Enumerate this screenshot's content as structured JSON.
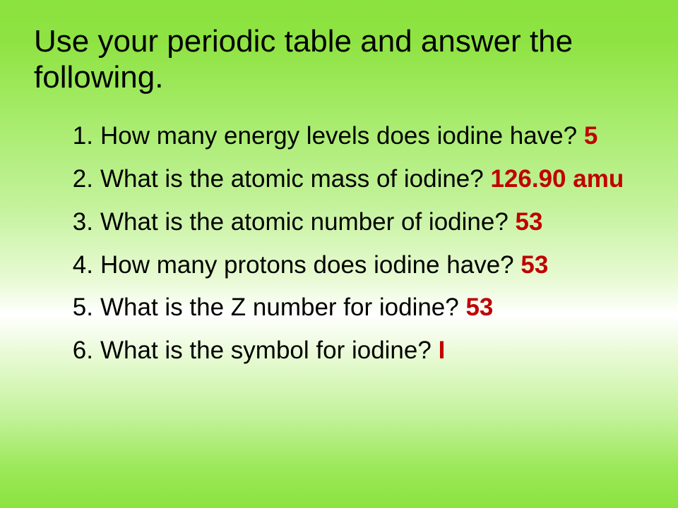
{
  "type": "slide",
  "background": {
    "gradient_stops": [
      "#8be33f",
      "#8ee342",
      "#a1ea62",
      "#c3f29a",
      "#e8fad4",
      "#ffffff",
      "#e8fad4",
      "#c3f29a",
      "#9ce85a",
      "#8be33f"
    ]
  },
  "title": {
    "text": "Use your periodic table and answer the following.",
    "font_size": 44,
    "color": "#000000"
  },
  "list": {
    "font_size": 35,
    "question_color": "#000000",
    "answer_color": "#c00000",
    "answer_weight": "bold",
    "items": [
      {
        "question": "How many energy levels does iodine have? ",
        "answer": "5"
      },
      {
        "question": "What is the atomic mass of iodine? ",
        "answer": "126.90 amu"
      },
      {
        "question": "What is the atomic number of iodine? ",
        "answer": "53"
      },
      {
        "question": "How many protons does iodine have? ",
        "answer": "53"
      },
      {
        "question": "What is the Z number for iodine? ",
        "answer": "53"
      },
      {
        "question": "What is the symbol for iodine? ",
        "answer": "I"
      }
    ]
  }
}
